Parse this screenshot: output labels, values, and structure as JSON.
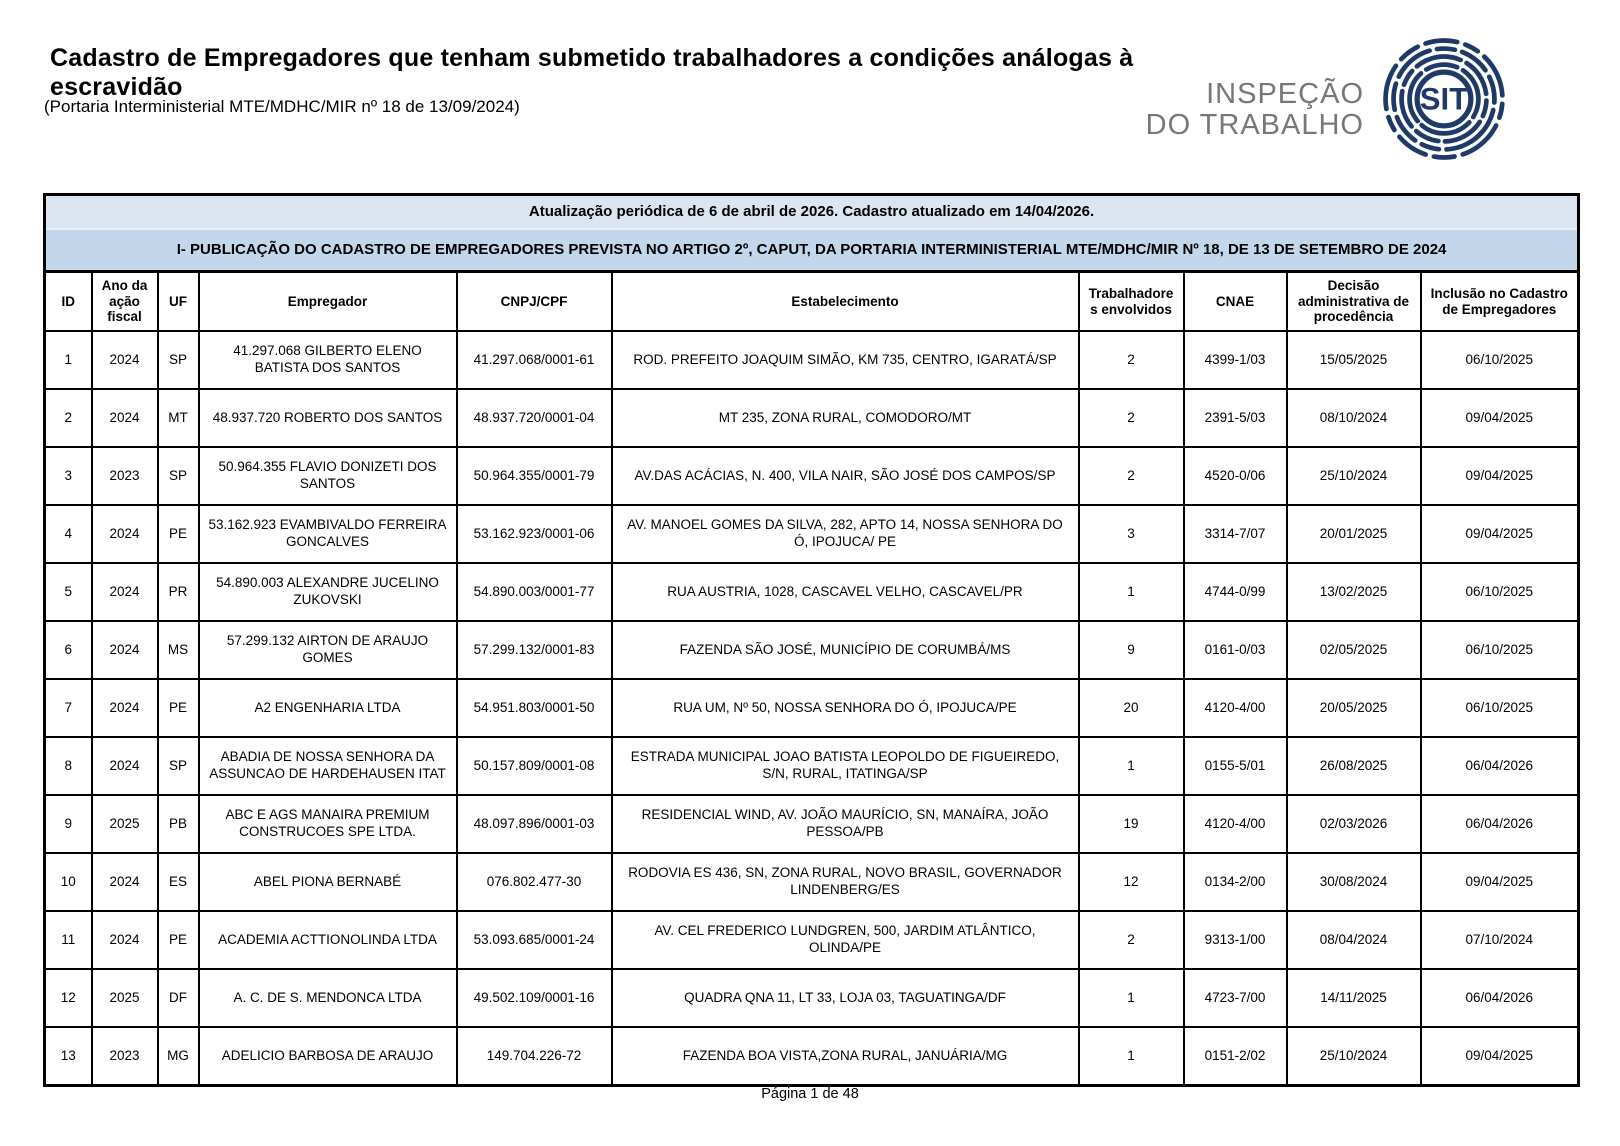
{
  "page": {
    "title": "Cadastro de Empregadores que tenham submetido trabalhadores a condições análogas à escravidão",
    "subtitle": "(Portaria Interministerial MTE/MDHC/MIR nº 18 de 13/09/2024)",
    "footer": "Página 1 de 48"
  },
  "logo": {
    "org_line1": "INSPEÇÃO",
    "org_line2": "DO TRABALHO",
    "badge_text": "SIT",
    "navy": "#1f3a68",
    "gray": "#76777a"
  },
  "banners": {
    "update_notice": "Atualização periódica de 6 de abril de 2026. Cadastro atualizado em 14/04/2026.",
    "publication_title": "I- PUBLICAÇÃO DO CADASTRO DE EMPREGADORES PREVISTA NO ARTIGO 2º, CAPUT, DA PORTARIA INTERMINISTERIAL MTE/MDHC/MIR Nº 18, DE 13 DE SETEMBRO DE 2024",
    "row1_bg": "#dbe5f1",
    "row2_bg": "#c3d7ec"
  },
  "table": {
    "columns": [
      "ID",
      "Ano da ação fiscal",
      "UF",
      "Empregador",
      "CNPJ/CPF",
      "Estabelecimento",
      "Trabalhadores envolvidos",
      "CNAE",
      "Decisão administrativa de procedência",
      "Inclusão no Cadastro de Empregadores"
    ],
    "rows": [
      [
        "1",
        "2024",
        "SP",
        "41.297.068 GILBERTO ELENO BATISTA DOS SANTOS",
        "41.297.068/0001-61",
        "ROD. PREFEITO JOAQUIM SIMÃO, KM 735, CENTRO, IGARATÁ/SP",
        "2",
        "4399-1/03",
        "15/05/2025",
        "06/10/2025"
      ],
      [
        "2",
        "2024",
        "MT",
        "48.937.720 ROBERTO DOS SANTOS",
        "48.937.720/0001-04",
        "MT 235, ZONA RURAL, COMODORO/MT",
        "2",
        "2391-5/03",
        "08/10/2024",
        "09/04/2025"
      ],
      [
        "3",
        "2023",
        "SP",
        "50.964.355 FLAVIO DONIZETI DOS SANTOS",
        "50.964.355/0001-79",
        "AV.DAS ACÁCIAS, N. 400, VILA NAIR, SÃO JOSÉ DOS CAMPOS/SP",
        "2",
        "4520-0/06",
        "25/10/2024",
        "09/04/2025"
      ],
      [
        "4",
        "2024",
        "PE",
        "53.162.923 EVAMBIVALDO FERREIRA GONCALVES",
        "53.162.923/0001-06",
        "AV. MANOEL GOMES DA SILVA, 282, APTO 14, NOSSA SENHORA DO Ó, IPOJUCA/ PE",
        "3",
        "3314-7/07",
        "20/01/2025",
        "09/04/2025"
      ],
      [
        "5",
        "2024",
        "PR",
        "54.890.003 ALEXANDRE JUCELINO ZUKOVSKI",
        "54.890.003/0001-77",
        "RUA AUSTRIA, 1028, CASCAVEL VELHO, CASCAVEL/PR",
        "1",
        "4744-0/99",
        "13/02/2025",
        "06/10/2025"
      ],
      [
        "6",
        "2024",
        "MS",
        "57.299.132 AIRTON DE ARAUJO GOMES",
        "57.299.132/0001-83",
        "FAZENDA SÃO JOSÉ, MUNICÍPIO DE CORUMBÁ/MS",
        "9",
        "0161-0/03",
        "02/05/2025",
        "06/10/2025"
      ],
      [
        "7",
        "2024",
        "PE",
        "A2 ENGENHARIA LTDA",
        "54.951.803/0001-50",
        "RUA UM, Nº 50, NOSSA SENHORA DO Ó, IPOJUCA/PE",
        "20",
        "4120-4/00",
        "20/05/2025",
        "06/10/2025"
      ],
      [
        "8",
        "2024",
        "SP",
        "ABADIA DE NOSSA SENHORA DA ASSUNCAO DE HARDEHAUSEN ITAT",
        "50.157.809/0001-08",
        "ESTRADA MUNICIPAL JOAO BATISTA LEOPOLDO DE FIGUEIREDO, S/N, RURAL, ITATINGA/SP",
        "1",
        "0155-5/01",
        "26/08/2025",
        "06/04/2026"
      ],
      [
        "9",
        "2025",
        "PB",
        "ABC E AGS MANAIRA PREMIUM CONSTRUCOES SPE LTDA.",
        "48.097.896/0001-03",
        "RESIDENCIAL WIND, AV. JOÃO MAURÍCIO, SN, MANAÍRA, JOÃO PESSOA/PB",
        "19",
        "4120-4/00",
        "02/03/2026",
        "06/04/2026"
      ],
      [
        "10",
        "2024",
        "ES",
        "ABEL PIONA BERNABÉ",
        "076.802.477-30",
        "RODOVIA ES 436, SN, ZONA RURAL, NOVO BRASIL, GOVERNADOR LINDENBERG/ES",
        "12",
        "0134-2/00",
        "30/08/2024",
        "09/04/2025"
      ],
      [
        "11",
        "2024",
        "PE",
        "ACADEMIA ACTTIONOLINDA LTDA",
        "53.093.685/0001-24",
        "AV. CEL FREDERICO LUNDGREN, 500, JARDIM ATLÂNTICO, OLINDA/PE",
        "2",
        "9313-1/00",
        "08/04/2024",
        "07/10/2024"
      ],
      [
        "12",
        "2025",
        "DF",
        "A. C. DE S. MENDONCA LTDA",
        "49.502.109/0001-16",
        "QUADRA QNA 11, LT 33, LOJA 03, TAGUATINGA/DF",
        "1",
        "4723-7/00",
        "14/11/2025",
        "06/04/2026"
      ],
      [
        "13",
        "2023",
        "MG",
        "ADELICIO BARBOSA DE ARAUJO",
        "149.704.226-72",
        "FAZENDA BOA VISTA,ZONA RURAL, JANUÁRIA/MG",
        "1",
        "0151-2/02",
        "25/10/2024",
        "09/04/2025"
      ]
    ]
  }
}
